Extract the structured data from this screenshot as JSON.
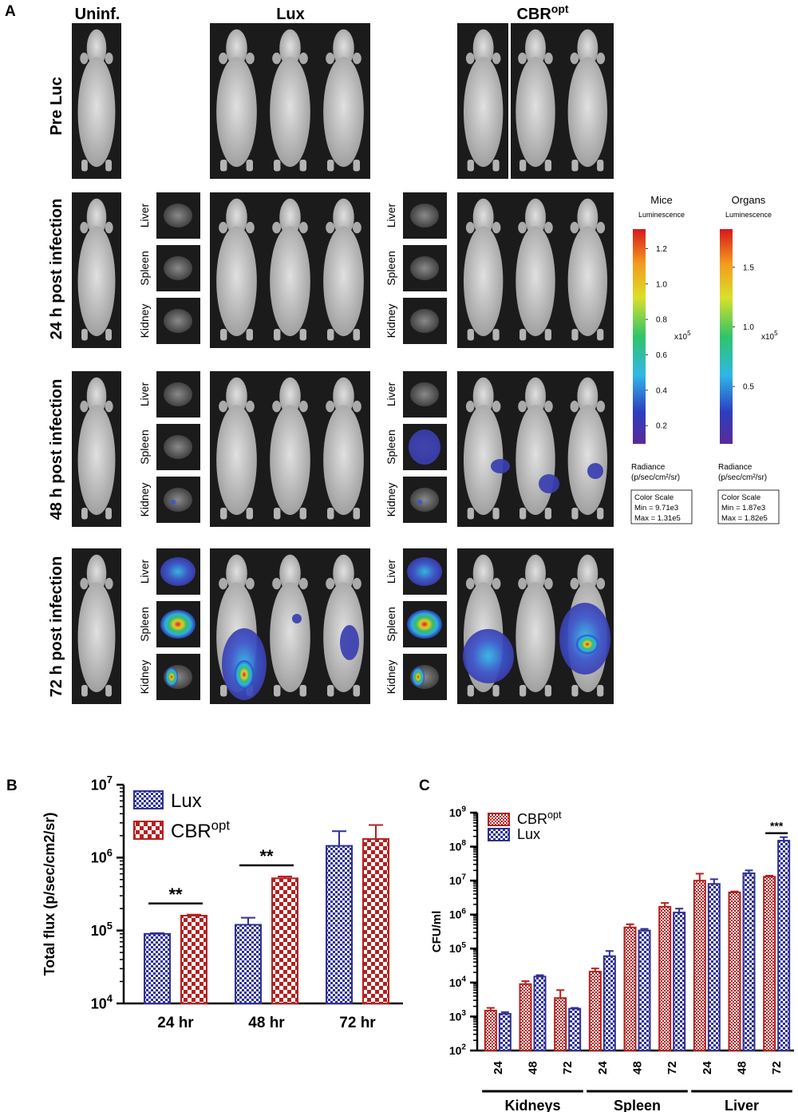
{
  "panel_a": {
    "letter": "A",
    "col_headers": {
      "uninf": "Uninf.",
      "lux": "Lux",
      "cbr_base": "CBR",
      "cbr_sup": "opt"
    },
    "row_labels": [
      "Pre Luc",
      "24 h post infection",
      "48 h post infection",
      "72 h post infection"
    ],
    "organ_labels": [
      "Liver",
      "Spleen",
      "Kidney"
    ],
    "colors": {
      "photo_bg": "#1b1b1b",
      "fur": "#c9c9c9"
    },
    "color_scales": [
      {
        "title": "Mice",
        "subtitle": "Luminescence",
        "ticks": [
          "1.2",
          "1.0",
          "0.8",
          "0.6",
          "0.4",
          "0.2"
        ],
        "tick_values": [
          1.2,
          1.0,
          0.8,
          0.6,
          0.4,
          0.2
        ],
        "range": [
          0.0971,
          1.31
        ],
        "multiplier": "x10",
        "multiplier_exp": "5",
        "radiance_line1": "Radiance",
        "radiance_line2": "(p/sec/cm²/sr)",
        "box_title": "Color Scale",
        "box_min": "Min = 9.71e3",
        "box_max": "Max = 1.31e5"
      },
      {
        "title": "Organs",
        "subtitle": "Luminescence",
        "ticks": [
          "1.5",
          "1.0",
          "0.5"
        ],
        "tick_values": [
          1.5,
          1.0,
          0.5
        ],
        "range": [
          0.0187,
          1.82
        ],
        "multiplier": "x10",
        "multiplier_exp": "5",
        "radiance_line1": "Radiance",
        "radiance_line2": "(p/sec/cm²/sr)",
        "box_title": "Color Scale",
        "box_min": "Min = 1.87e3",
        "box_max": "Max = 1.82e5"
      }
    ]
  },
  "chart_data": [
    {
      "panel": "B",
      "type": "bar",
      "title": "",
      "ylabel": "Total flux (p/sec/cm2/sr)",
      "xlabel": "",
      "yscale": "log",
      "ylim": [
        10000,
        10000000
      ],
      "ytick_base": "10",
      "ytick_exps": [
        "4",
        "5",
        "6",
        "7"
      ],
      "categories": [
        "24 hr",
        "48 hr",
        "72 hr"
      ],
      "series": [
        {
          "name": "Lux",
          "values": [
            90000,
            120000,
            1450000
          ],
          "errors": [
            92000,
            150000,
            2300000
          ],
          "color": "#2e3192"
        },
        {
          "name": "CBR",
          "name_sup": "opt",
          "values": [
            160000,
            520000,
            1800000
          ],
          "errors": [
            165000,
            550000,
            2800000
          ],
          "color": "#b5201f"
        }
      ],
      "significance": [
        {
          "category": "24 hr",
          "label": "**"
        },
        {
          "category": "48 hr",
          "label": "**"
        }
      ],
      "legend": "top-left"
    },
    {
      "panel": "C",
      "type": "bar",
      "title": "",
      "ylabel": "CFU/ml",
      "xlabel": "",
      "yscale": "log",
      "ylim": [
        100,
        1000000000
      ],
      "ytick_base": "10",
      "ytick_exps": [
        "2",
        "3",
        "4",
        "5",
        "6",
        "7",
        "8",
        "9"
      ],
      "categories": [
        "24",
        "48",
        "72",
        "24",
        "48",
        "72",
        "24",
        "48",
        "72"
      ],
      "groups": [
        "Kidneys",
        "Spleen",
        "Liver"
      ],
      "series": [
        {
          "name": "CBR",
          "name_sup": "opt",
          "values": [
            1500,
            9000,
            3500,
            21000,
            420000,
            1700000,
            10000000,
            4500000,
            13000000
          ],
          "errors": [
            1800,
            11000,
            6000,
            26000,
            520000,
            2200000,
            16000000,
            4800000,
            14000000
          ],
          "color": "#b5201f"
        },
        {
          "name": "Lux",
          "values": [
            1200,
            15000,
            1700,
            60000,
            340000,
            1150000,
            8000000,
            16500000,
            150000000
          ],
          "errors": [
            1350,
            16500,
            1800,
            85000,
            380000,
            1500000,
            11000000,
            20000000,
            190000000
          ],
          "color": "#2e3192"
        }
      ],
      "significance": [
        {
          "category_index": 8,
          "label": "***"
        }
      ],
      "legend": "top-left"
    }
  ]
}
